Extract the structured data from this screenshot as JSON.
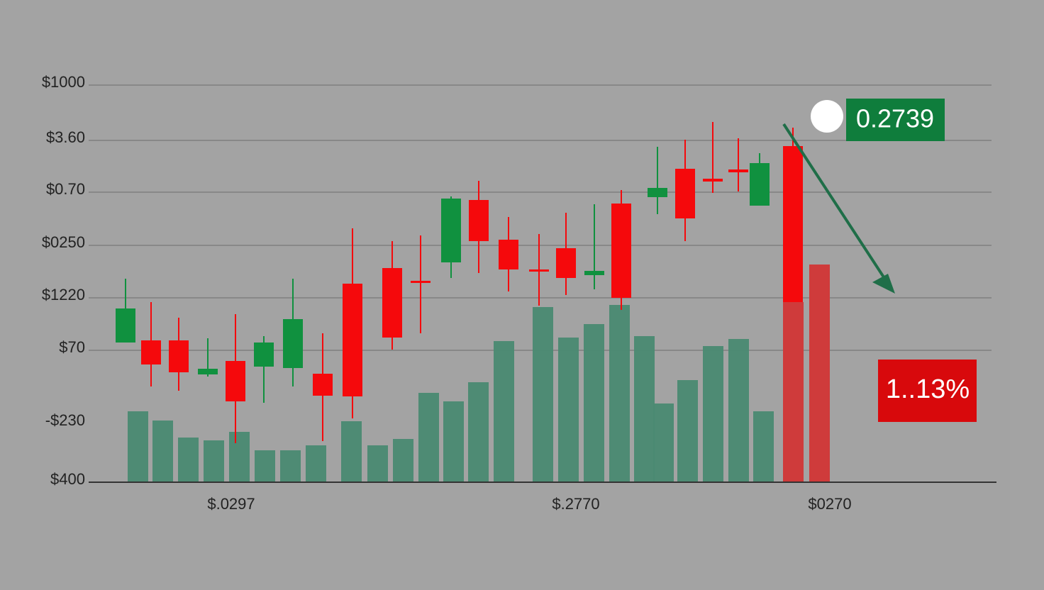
{
  "axis": {
    "y_labels": [
      "$1000",
      "$3.60",
      "$0.70",
      "$0250",
      "$1220",
      "$70",
      "-$230",
      "$400"
    ],
    "x_labels": [
      "$.0297",
      "$.2770",
      "$0270"
    ]
  },
  "badges": {
    "price": "0.2739",
    "change": "1..13%"
  }
}
